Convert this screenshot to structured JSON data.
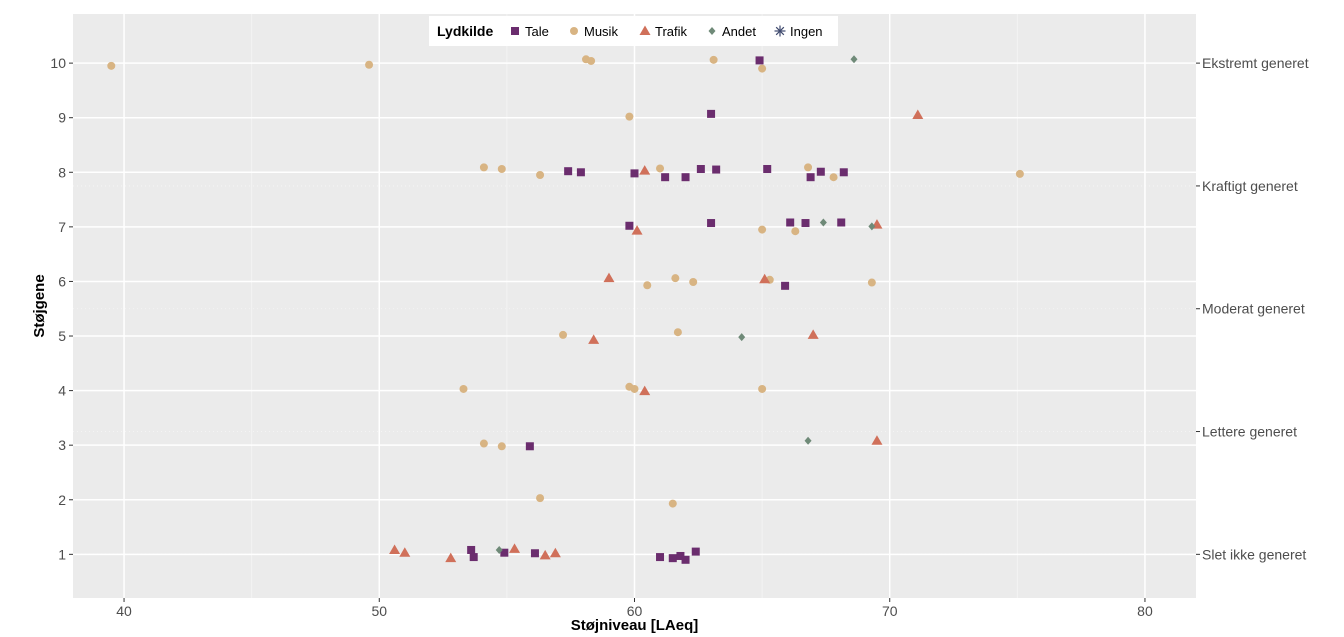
{
  "chart_data": {
    "type": "scatter",
    "xlabel": "Støjniveau [LAeq]",
    "ylabel": "Støjgene",
    "xlim": [
      38,
      82
    ],
    "ylim": [
      0.2,
      10.9
    ],
    "x_ticks": [
      40,
      50,
      60,
      70,
      80
    ],
    "y_ticks": [
      1,
      2,
      3,
      4,
      5,
      6,
      7,
      8,
      9,
      10
    ],
    "secondary_y_ticks": [
      {
        "value": 1,
        "label": "Slet ikke generet"
      },
      {
        "value": 3.25,
        "label": "Lettere generet"
      },
      {
        "value": 5.5,
        "label": "Moderat generet"
      },
      {
        "value": 7.75,
        "label": "Kraftigt generet"
      },
      {
        "value": 10,
        "label": "Ekstremt generet"
      }
    ],
    "grid": true,
    "legend": {
      "title": "Lydkilde",
      "position": "top"
    },
    "series": [
      {
        "name": "Tale",
        "color": "#6b2d6e",
        "shape": "square",
        "points": [
          [
            53.6,
            1.08
          ],
          [
            53.7,
            0.95
          ],
          [
            54.9,
            1.03
          ],
          [
            56.1,
            1.02
          ],
          [
            61.0,
            0.95
          ],
          [
            61.5,
            0.93
          ],
          [
            61.8,
            0.97
          ],
          [
            62.0,
            0.9
          ],
          [
            62.4,
            1.05
          ],
          [
            55.9,
            2.98
          ],
          [
            65.9,
            5.92
          ],
          [
            59.8,
            7.02
          ],
          [
            63.0,
            7.07
          ],
          [
            66.1,
            7.08
          ],
          [
            66.7,
            7.07
          ],
          [
            68.1,
            7.08
          ],
          [
            57.4,
            8.02
          ],
          [
            57.9,
            8.0
          ],
          [
            60.0,
            7.98
          ],
          [
            61.2,
            7.91
          ],
          [
            62.0,
            7.91
          ],
          [
            62.6,
            8.06
          ],
          [
            63.2,
            8.05
          ],
          [
            65.2,
            8.06
          ],
          [
            66.9,
            7.91
          ],
          [
            67.3,
            8.01
          ],
          [
            68.2,
            8.0
          ],
          [
            63.0,
            9.07
          ],
          [
            64.9,
            10.05
          ]
        ]
      },
      {
        "name": "Musik",
        "color": "#d8b483",
        "shape": "circle",
        "points": [
          [
            39.5,
            9.95
          ],
          [
            49.6,
            9.97
          ],
          [
            58.1,
            10.07
          ],
          [
            58.3,
            10.04
          ],
          [
            63.1,
            10.06
          ],
          [
            65.0,
            9.9
          ],
          [
            59.8,
            9.02
          ],
          [
            54.1,
            8.09
          ],
          [
            54.8,
            8.06
          ],
          [
            56.3,
            7.95
          ],
          [
            61.0,
            8.07
          ],
          [
            66.8,
            8.09
          ],
          [
            67.8,
            7.91
          ],
          [
            75.1,
            7.97
          ],
          [
            65.0,
            6.95
          ],
          [
            66.3,
            6.92
          ],
          [
            60.5,
            5.93
          ],
          [
            61.6,
            6.06
          ],
          [
            62.3,
            5.99
          ],
          [
            65.3,
            6.03
          ],
          [
            69.3,
            5.98
          ],
          [
            57.2,
            5.02
          ],
          [
            61.7,
            5.07
          ],
          [
            53.3,
            4.03
          ],
          [
            59.8,
            4.07
          ],
          [
            60.0,
            4.03
          ],
          [
            65.0,
            4.03
          ],
          [
            54.1,
            3.03
          ],
          [
            54.8,
            2.98
          ],
          [
            56.3,
            2.03
          ],
          [
            61.5,
            1.93
          ]
        ]
      },
      {
        "name": "Trafik",
        "color": "#d0705a",
        "shape": "triangle",
        "points": [
          [
            50.6,
            1.08
          ],
          [
            51.0,
            1.03
          ],
          [
            52.8,
            0.93
          ],
          [
            55.3,
            1.1
          ],
          [
            56.5,
            0.98
          ],
          [
            56.9,
            1.02
          ],
          [
            58.4,
            4.93
          ],
          [
            59.0,
            6.06
          ],
          [
            60.1,
            6.93
          ],
          [
            60.4,
            8.03
          ],
          [
            60.4,
            3.99
          ],
          [
            65.1,
            6.04
          ],
          [
            67.0,
            5.02
          ],
          [
            69.5,
            7.04
          ],
          [
            69.5,
            3.08
          ],
          [
            71.1,
            9.05
          ]
        ]
      },
      {
        "name": "Andet",
        "color": "#6f8a78",
        "shape": "diamond",
        "points": [
          [
            54.7,
            1.08
          ],
          [
            64.2,
            4.98
          ],
          [
            66.8,
            3.08
          ],
          [
            67.4,
            7.08
          ],
          [
            68.6,
            10.07
          ],
          [
            69.3,
            7.01
          ]
        ]
      },
      {
        "name": "Ingen",
        "color": "#3f4a6e",
        "shape": "star",
        "points": []
      }
    ]
  }
}
